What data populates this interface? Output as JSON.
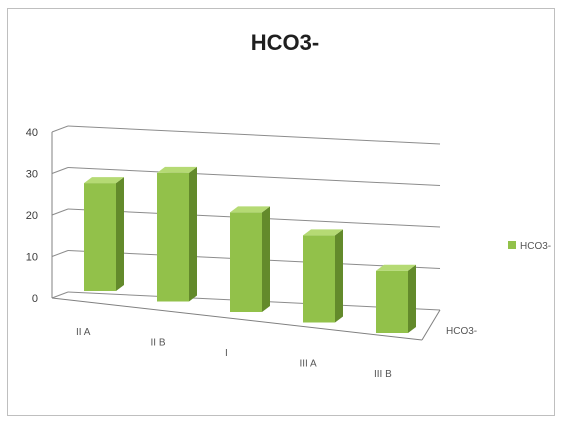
{
  "chart_data": {
    "type": "bar",
    "title": "HCO3-",
    "categories": [
      "II A",
      "II B",
      "I",
      "III A",
      "III B"
    ],
    "series": [
      {
        "name": "HCO3-",
        "values": [
          26,
          31,
          24,
          21,
          15
        ]
      }
    ],
    "depth_label": "HCO3-",
    "ylim": [
      0,
      40
    ],
    "yticks": [
      "0",
      "10",
      "20",
      "30",
      "40"
    ],
    "grid": true,
    "legend": "right",
    "colors": {
      "bar_front": "#92c14a",
      "bar_side": "#638a2b",
      "bar_top": "#b5da74",
      "grid": "#8c8c8c",
      "floor": "#808080"
    }
  }
}
